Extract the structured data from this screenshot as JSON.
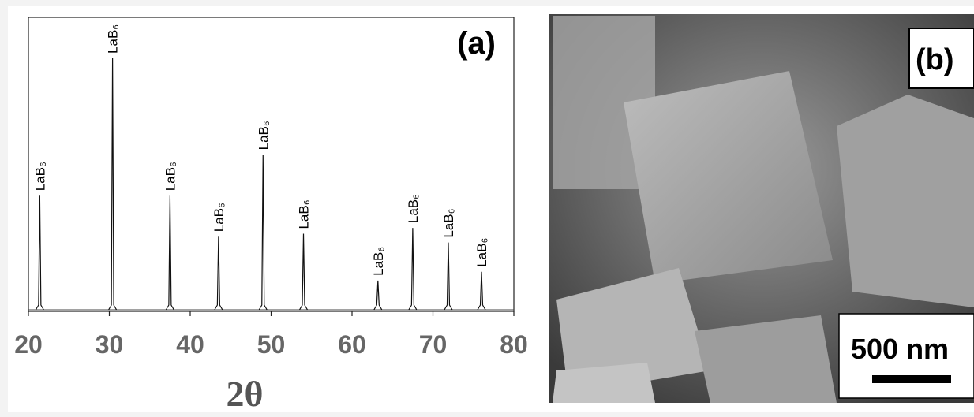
{
  "chart_data": {
    "type": "xrd",
    "panel_label": "(a)",
    "x_label": "2θ",
    "x": [
      21.4,
      30.4,
      37.5,
      43.5,
      49.0,
      54.0,
      63.2,
      67.5,
      71.9,
      76.0
    ],
    "values": [
      39,
      86,
      39,
      25,
      53,
      26,
      10,
      28,
      23,
      13
    ],
    "peak_labels": [
      "LaB₆",
      "LaB₆",
      "LaB₆",
      "LaB₆",
      "LaB₆",
      "LaB₆",
      "LaB₆",
      "LaB₆",
      "LaB₆",
      "LaB₆"
    ],
    "color": "#111111",
    "xlim": [
      20,
      80
    ],
    "xticks": [
      20,
      30,
      40,
      50,
      60,
      70,
      80
    ],
    "ylim": [
      0,
      100
    ]
  },
  "image": {
    "panel_label": "(b)",
    "scale_bar": "500 nm"
  }
}
